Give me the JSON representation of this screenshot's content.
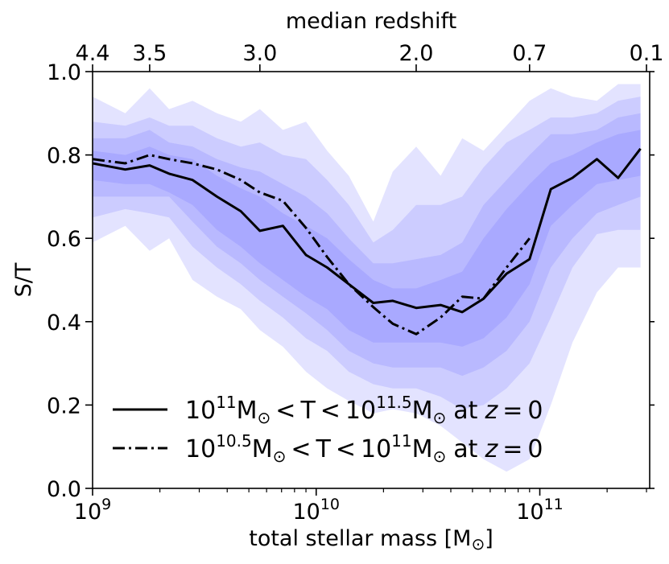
{
  "chart_data": {
    "type": "line",
    "xscale": "log",
    "xlabel": "total stellar mass [M",
    "xlabel_suffix": "]",
    "ylabel": "S/T",
    "top_xlabel": "median redshift",
    "xlim": [
      1000000000.0,
      310000000000.0
    ],
    "ylim": [
      0.0,
      1.0
    ],
    "y_ticks": [
      {
        "value": 0.0,
        "label": "0.0"
      },
      {
        "value": 0.2,
        "label": "0.2"
      },
      {
        "value": 0.4,
        "label": "0.4"
      },
      {
        "value": 0.6,
        "label": "0.6"
      },
      {
        "value": 0.8,
        "label": "0.8"
      },
      {
        "value": 1.0,
        "label": "1.0"
      }
    ],
    "x_ticks": [
      {
        "value": 1000000000.0,
        "base": "10",
        "exp": "9"
      },
      {
        "value": 10000000000.0,
        "base": "10",
        "exp": "10"
      },
      {
        "value": 100000000000.0,
        "base": "10",
        "exp": "11"
      }
    ],
    "top_ticks": [
      {
        "value": 1000000000.0,
        "label": "4.4"
      },
      {
        "value": 1800000000.0,
        "label": "3.5"
      },
      {
        "value": 5600000000.0,
        "label": "3.0"
      },
      {
        "value": 28000000000.0,
        "label": "2.0"
      },
      {
        "value": 90000000000.0,
        "label": "0.7"
      },
      {
        "value": 300000000000.0,
        "label": "0.1"
      }
    ],
    "band_color": "#6666ff",
    "band_opacities": [
      0.18,
      0.18,
      0.18,
      0.18
    ],
    "bands_x": [
      1000000000.0,
      1400000000.0,
      1800000000.0,
      2200000000.0,
      2800000000.0,
      3600000000.0,
      4600000000.0,
      5600000000.0,
      7100000000.0,
      9000000000.0,
      11200000000.0,
      14000000000.0,
      18000000000.0,
      22000000000.0,
      28000000000.0,
      36000000000.0,
      45000000000.0,
      56000000000.0,
      71000000000.0,
      90000000000.0,
      112000000000.0,
      140000000000.0,
      180000000000.0,
      224000000000.0,
      282000000000.0
    ],
    "bands": [
      {
        "upper": [
          0.94,
          0.9,
          0.96,
          0.91,
          0.93,
          0.9,
          0.88,
          0.91,
          0.86,
          0.88,
          0.81,
          0.75,
          0.64,
          0.76,
          0.82,
          0.75,
          0.84,
          0.81,
          0.87,
          0.93,
          0.96,
          0.94,
          0.93,
          0.97,
          0.97
        ],
        "lower": [
          0.59,
          0.63,
          0.57,
          0.6,
          0.5,
          0.46,
          0.43,
          0.38,
          0.34,
          0.28,
          0.24,
          0.21,
          0.18,
          0.19,
          0.18,
          0.15,
          0.11,
          0.07,
          0.04,
          0.07,
          0.2,
          0.35,
          0.47,
          0.53,
          0.53
        ]
      },
      {
        "upper": [
          0.88,
          0.87,
          0.89,
          0.87,
          0.87,
          0.84,
          0.82,
          0.83,
          0.8,
          0.79,
          0.74,
          0.68,
          0.59,
          0.62,
          0.68,
          0.68,
          0.7,
          0.77,
          0.83,
          0.86,
          0.89,
          0.89,
          0.9,
          0.93,
          0.94
        ],
        "lower": [
          0.65,
          0.67,
          0.66,
          0.65,
          0.58,
          0.53,
          0.49,
          0.45,
          0.41,
          0.36,
          0.33,
          0.28,
          0.25,
          0.24,
          0.24,
          0.22,
          0.19,
          0.2,
          0.24,
          0.3,
          0.41,
          0.53,
          0.61,
          0.62,
          0.62
        ]
      },
      {
        "upper": [
          0.84,
          0.84,
          0.86,
          0.83,
          0.82,
          0.79,
          0.77,
          0.76,
          0.73,
          0.7,
          0.66,
          0.6,
          0.54,
          0.54,
          0.55,
          0.56,
          0.59,
          0.68,
          0.74,
          0.8,
          0.85,
          0.85,
          0.86,
          0.89,
          0.9
        ],
        "lower": [
          0.7,
          0.7,
          0.7,
          0.7,
          0.64,
          0.58,
          0.54,
          0.5,
          0.46,
          0.42,
          0.38,
          0.33,
          0.3,
          0.29,
          0.29,
          0.29,
          0.27,
          0.29,
          0.33,
          0.4,
          0.53,
          0.6,
          0.66,
          0.68,
          0.7
        ]
      },
      {
        "upper": [
          0.81,
          0.8,
          0.82,
          0.8,
          0.79,
          0.75,
          0.72,
          0.7,
          0.66,
          0.63,
          0.6,
          0.55,
          0.5,
          0.48,
          0.48,
          0.5,
          0.52,
          0.6,
          0.67,
          0.73,
          0.78,
          0.8,
          0.83,
          0.85,
          0.86
        ],
        "lower": [
          0.74,
          0.73,
          0.73,
          0.71,
          0.68,
          0.62,
          0.58,
          0.54,
          0.5,
          0.46,
          0.43,
          0.38,
          0.35,
          0.35,
          0.35,
          0.35,
          0.34,
          0.36,
          0.41,
          0.49,
          0.63,
          0.68,
          0.73,
          0.74,
          0.75
        ]
      }
    ],
    "series": [
      {
        "name": "10^11 M_sun < T < 10^11.5 M_sun at z = 0",
        "style": "solid",
        "x": [
          1000000000.0,
          1400000000.0,
          1800000000.0,
          2200000000.0,
          2800000000.0,
          3600000000.0,
          4600000000.0,
          5600000000.0,
          7100000000.0,
          9000000000.0,
          11200000000.0,
          14000000000.0,
          18000000000.0,
          22000000000.0,
          28000000000.0,
          36000000000.0,
          45000000000.0,
          56000000000.0,
          71000000000.0,
          90000000000.0,
          112000000000.0,
          140000000000.0,
          180000000000.0,
          224000000000.0,
          282000000000.0
        ],
        "y": [
          0.78,
          0.765,
          0.775,
          0.755,
          0.74,
          0.7,
          0.665,
          0.618,
          0.63,
          0.56,
          0.53,
          0.49,
          0.445,
          0.45,
          0.433,
          0.44,
          0.423,
          0.455,
          0.515,
          0.55,
          0.718,
          0.745,
          0.79,
          0.745,
          0.815
        ]
      },
      {
        "name": "10^10.5 M_sun < T < 10^11 M_sun at z = 0",
        "style": "dashdot",
        "x": [
          1000000000.0,
          1400000000.0,
          1800000000.0,
          2200000000.0,
          2800000000.0,
          3600000000.0,
          4600000000.0,
          5600000000.0,
          7100000000.0,
          9000000000.0,
          11200000000.0,
          14000000000.0,
          18000000000.0,
          22000000000.0,
          28000000000.0,
          36000000000.0,
          45000000000.0,
          56000000000.0,
          71000000000.0,
          90000000000.0
        ],
        "y": [
          0.79,
          0.78,
          0.8,
          0.79,
          0.78,
          0.765,
          0.74,
          0.71,
          0.69,
          0.625,
          0.555,
          0.49,
          0.435,
          0.395,
          0.37,
          0.41,
          0.46,
          0.455,
          0.53,
          0.6
        ]
      }
    ],
    "legend": {
      "placement": "lower-left",
      "entries": [
        {
          "style": "solid",
          "base1": "10",
          "exp1": "11",
          "unit": "M",
          "lt": "<",
          "T": "T",
          "base2": "10",
          "exp2": "11.5",
          "at": "at",
          "z": "z",
          "eq": "=",
          "zero": "0"
        },
        {
          "style": "dashdot",
          "base1": "10",
          "exp1": "10.5",
          "unit": "M",
          "lt": "<",
          "T": "T",
          "base2": "10",
          "exp2": "11",
          "at": "at",
          "z": "z",
          "eq": "=",
          "zero": "0"
        }
      ]
    }
  }
}
